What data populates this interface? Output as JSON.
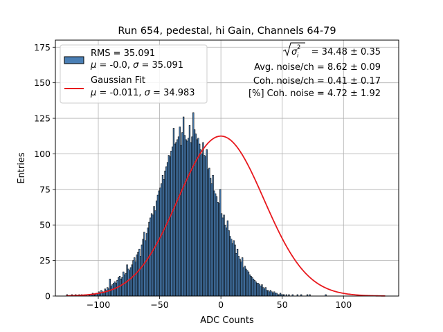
{
  "chart_data": {
    "type": "histogram",
    "title": "Run 654, pedestal, hi Gain, Channels 64-79",
    "xlabel": "ADC Counts",
    "ylabel": "Entries",
    "xlim": [
      -135,
      145
    ],
    "ylim": [
      0,
      180
    ],
    "x_ticks": [
      -100,
      -50,
      0,
      50,
      100
    ],
    "y_ticks": [
      0,
      25,
      50,
      75,
      100,
      125,
      150,
      175
    ],
    "grid": true,
    "bar_color": "#4a7fb5",
    "bar_edge_color": "#000000",
    "fit_color": "#e8191e",
    "legend_position": "top-left",
    "legend": [
      {
        "kind": "patch",
        "line1": "RMS = 35.091",
        "line2_mu": "-0.0",
        "line2_sigma": "35.091"
      },
      {
        "kind": "line",
        "line1": "Gaussian Fit",
        "line2_mu": "-0.011",
        "line2_sigma": "34.983"
      }
    ],
    "annotations": {
      "noise_value": "= 34.48 ± 0.35",
      "avg_noise": "Avg. noise/ch = 8.62 ± 0.09",
      "coh_noise": "Coh. noise/ch = 0.41 ± 0.17",
      "pct_coh_noise": "[%] Coh. noise = 4.72 ± 1.92"
    },
    "histogram": {
      "bin_start": -126,
      "bin_width": 1,
      "counts": [
        1,
        0,
        0,
        0,
        1,
        0,
        0,
        1,
        0,
        0,
        1,
        0,
        1,
        0,
        0,
        1,
        1,
        0,
        1,
        1,
        1,
        2,
        1,
        1,
        2,
        2,
        3,
        2,
        4,
        3,
        3,
        5,
        4,
        6,
        5,
        12,
        7,
        8,
        9,
        10,
        9,
        11,
        13,
        14,
        12,
        13,
        17,
        15,
        16,
        22,
        19,
        18,
        20,
        22,
        25,
        27,
        24,
        29,
        31,
        33,
        28,
        36,
        40,
        45,
        39,
        44,
        48,
        52,
        55,
        58,
        57,
        63,
        60,
        67,
        71,
        74,
        76,
        79,
        85,
        82,
        88,
        91,
        94,
        99,
        98,
        102,
        105,
        118,
        107,
        108,
        110,
        112,
        119,
        106,
        115,
        126,
        113,
        110,
        109,
        111,
        120,
        108,
        112,
        129,
        117,
        114,
        110,
        111,
        107,
        103,
        100,
        108,
        99,
        98,
        103,
        89,
        90,
        83,
        79,
        85,
        74,
        72,
        70,
        66,
        65,
        75,
        58,
        55,
        57,
        50,
        48,
        53,
        46,
        42,
        40,
        37,
        39,
        36,
        30,
        33,
        28,
        26,
        24,
        27,
        20,
        21,
        19,
        18,
        17,
        15,
        14,
        13,
        12,
        11,
        10,
        9,
        9,
        8,
        7,
        8,
        6,
        5,
        6,
        4,
        4,
        3,
        4,
        3,
        2,
        3,
        2,
        2,
        1,
        1,
        2,
        1,
        1,
        1,
        0,
        1,
        0,
        1,
        0,
        0,
        1,
        0,
        0,
        0,
        1,
        0,
        0,
        1,
        0,
        0,
        0,
        0,
        1,
        0,
        1,
        0,
        0,
        0,
        0,
        0,
        0,
        0,
        0,
        0,
        0,
        0,
        0,
        1
      ],
      "note": "Per-bin counts estimated from the rendered histogram."
    },
    "gaussian_fit": {
      "mu": -0.011,
      "sigma": 34.983,
      "amplitude": 112.5
    }
  }
}
